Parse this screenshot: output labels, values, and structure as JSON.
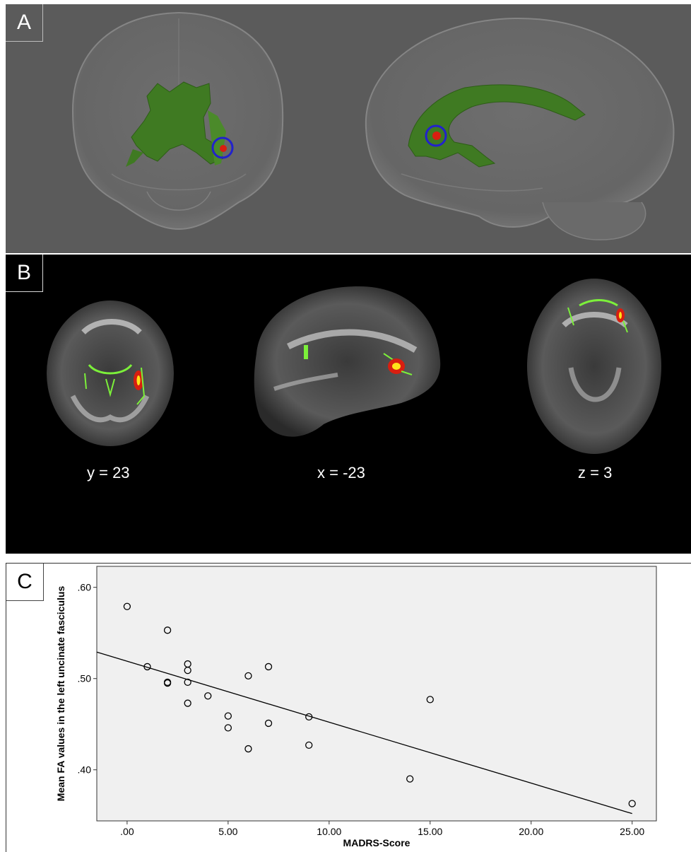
{
  "panels": {
    "a": {
      "label": "A"
    },
    "b": {
      "label": "B",
      "slices": [
        {
          "coord": "y = 23"
        },
        {
          "coord": "x = -23"
        },
        {
          "coord": "z = 3"
        }
      ]
    },
    "c": {
      "label": "C"
    }
  },
  "colors": {
    "tract_green": "#3f7a22",
    "highlight_red": "#d81e10",
    "marker_circle": "#2222cc",
    "skeleton_green": "#7cf03a",
    "cluster_yellow": "#ffe21a",
    "plot_bg": "#f0f0f0"
  },
  "chart_data": {
    "type": "scatter",
    "xlabel": "MADRS-Score",
    "ylabel": "Mean FA values in the left uncinate fasciculus",
    "xlim": [
      -1.5,
      26.2
    ],
    "ylim": [
      0.344,
      0.623
    ],
    "x_ticks": [
      0,
      5,
      10,
      15,
      20,
      25
    ],
    "x_tick_labels": [
      ".00",
      "5.00",
      "10.00",
      "15.00",
      "20.00",
      "25.00"
    ],
    "y_ticks": [
      0.4,
      0.5,
      0.6
    ],
    "y_tick_labels": [
      ".40",
      ".50",
      ".60"
    ],
    "grid": false,
    "points": [
      {
        "x": 0,
        "y": 0.579
      },
      {
        "x": 1,
        "y": 0.513
      },
      {
        "x": 2,
        "y": 0.553
      },
      {
        "x": 2,
        "y": 0.496
      },
      {
        "x": 2,
        "y": 0.495
      },
      {
        "x": 3,
        "y": 0.516
      },
      {
        "x": 3,
        "y": 0.509
      },
      {
        "x": 3,
        "y": 0.496
      },
      {
        "x": 3,
        "y": 0.473
      },
      {
        "x": 4,
        "y": 0.481
      },
      {
        "x": 5,
        "y": 0.459
      },
      {
        "x": 5,
        "y": 0.446
      },
      {
        "x": 6,
        "y": 0.503
      },
      {
        "x": 6,
        "y": 0.423
      },
      {
        "x": 7,
        "y": 0.513
      },
      {
        "x": 7,
        "y": 0.451
      },
      {
        "x": 9,
        "y": 0.458
      },
      {
        "x": 9,
        "y": 0.427
      },
      {
        "x": 14,
        "y": 0.39
      },
      {
        "x": 15,
        "y": 0.477
      },
      {
        "x": 25,
        "y": 0.363
      }
    ],
    "fit_line": {
      "x": [
        -1.5,
        25.0
      ],
      "y": [
        0.529,
        0.352
      ]
    }
  }
}
